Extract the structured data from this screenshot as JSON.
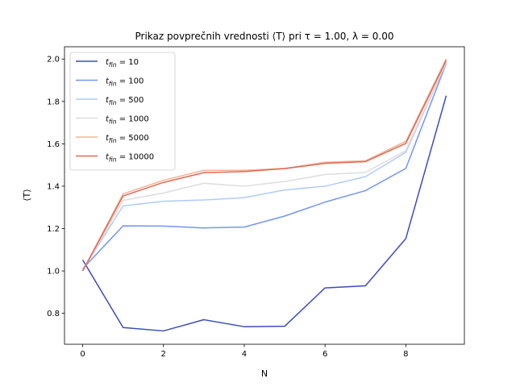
{
  "chart_data": {
    "type": "line",
    "title": "Prikaz povprečnih vrednosti ⟨T⟩ pri τ = 1.00, λ = 0.00",
    "xlabel": "N",
    "ylabel": "⟨T⟩",
    "xlim": [
      -0.45,
      9.45
    ],
    "ylim": [
      0.654,
      2.058
    ],
    "xticks": [
      0,
      2,
      4,
      6,
      8
    ],
    "yticks": [
      0.8,
      1.0,
      1.2,
      1.4,
      1.6,
      1.8,
      2.0
    ],
    "xtick_labels": [
      "0",
      "2",
      "4",
      "6",
      "8"
    ],
    "ytick_labels": [
      "0.8",
      "1.0",
      "1.2",
      "1.4",
      "1.6",
      "1.8",
      "2.0"
    ],
    "grid": false,
    "legend_position": "upper-left",
    "x": [
      0,
      1,
      2,
      3,
      4,
      5,
      6,
      7,
      8,
      9
    ],
    "series": [
      {
        "name": "t_fin = 10",
        "legend_base": "t",
        "legend_sub": "fin",
        "legend_value": " = 10",
        "color": "#3b4cc0",
        "values": [
          1.052,
          0.733,
          0.717,
          0.77,
          0.737,
          0.739,
          0.92,
          0.93,
          1.153,
          1.827
        ]
      },
      {
        "name": "t_fin = 100",
        "legend_base": "t",
        "legend_sub": "fin",
        "legend_value": " = 100",
        "color": "#7396f5",
        "values": [
          1.01,
          1.213,
          1.212,
          1.203,
          1.207,
          1.259,
          1.325,
          1.379,
          1.484,
          1.98
        ]
      },
      {
        "name": "t_fin = 500",
        "legend_base": "t",
        "legend_sub": "fin",
        "legend_value": " = 500",
        "color": "#b0cbfc",
        "values": [
          1.005,
          1.307,
          1.329,
          1.335,
          1.346,
          1.382,
          1.4,
          1.445,
          1.56,
          1.983
        ]
      },
      {
        "name": "t_fin = 1000",
        "legend_base": "t",
        "legend_sub": "fin",
        "legend_value": " = 1000",
        "color": "#dcdddd",
        "values": [
          1.002,
          1.333,
          1.368,
          1.414,
          1.4,
          1.422,
          1.455,
          1.465,
          1.568,
          1.987
        ]
      },
      {
        "name": "t_fin = 5000",
        "legend_base": "t",
        "legend_sub": "fin",
        "legend_value": " = 5000",
        "color": "#f6b394",
        "values": [
          1.0,
          1.364,
          1.428,
          1.475,
          1.475,
          1.484,
          1.513,
          1.52,
          1.612,
          2.001
        ]
      },
      {
        "name": "t_fin = 10000",
        "legend_base": "t",
        "legend_sub": "fin",
        "legend_value": " = 10000",
        "color": "#e16852",
        "values": [
          1.0,
          1.354,
          1.418,
          1.464,
          1.469,
          1.483,
          1.508,
          1.516,
          1.602,
          1.994
        ]
      }
    ]
  }
}
